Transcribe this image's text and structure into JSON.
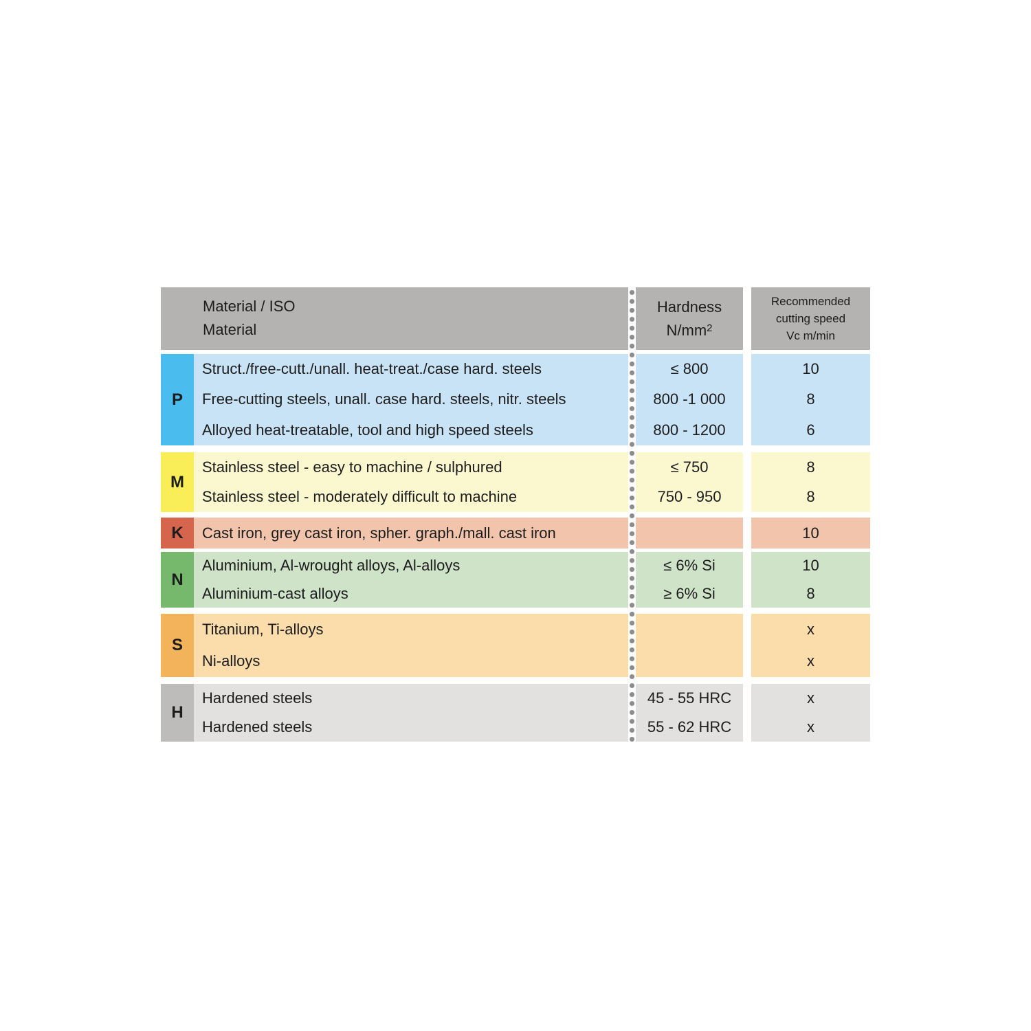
{
  "colors": {
    "background": "#ffffff",
    "header_bg": "#b5b3b1",
    "text": "#1c1c1c",
    "dot": "#8c8c8c"
  },
  "header": {
    "material": [
      "Material / ISO",
      "Material"
    ],
    "hardness_line1": "Hardness",
    "hardness_line2_base": "N/mm",
    "hardness_line2_sup": "2",
    "speed": [
      "Recommended",
      "cutting speed",
      "Vc m/min"
    ]
  },
  "groups": [
    {
      "code": "P",
      "label_color": "#4abced",
      "row_color": "#c9e3f6",
      "rows": [
        {
          "material": "Struct./free-cutt./unall. heat-treat./case hard. steels",
          "hardness": "≤ 800",
          "speed": "10"
        },
        {
          "material": "Free-cutting steels, unall. case hard. steels, nitr. steels",
          "hardness": "800 -1 000",
          "speed": "8"
        },
        {
          "material": "Alloyed heat-treatable, tool and high speed steels",
          "hardness": "800 - 1200",
          "speed": "6"
        }
      ]
    },
    {
      "code": "M",
      "label_color": "#f9ee58",
      "row_color": "#fbf8cf",
      "rows": [
        {
          "material": "Stainless steel - easy to machine / sulphured",
          "hardness": "≤ 750",
          "speed": "8"
        },
        {
          "material": "Stainless steel - moderately difficult to machine",
          "hardness": "750 - 950",
          "speed": "8"
        }
      ]
    },
    {
      "code": "K",
      "label_color": "#d5654d",
      "row_color": "#f2c4ab",
      "rows": [
        {
          "material": "Cast iron, grey cast iron, spher. graph./mall. cast iron",
          "hardness": "",
          "speed": "10"
        }
      ]
    },
    {
      "code": "N",
      "label_color": "#76b96d",
      "row_color": "#cfe3c9",
      "rows": [
        {
          "material": "Aluminium, Al-wrought alloys, Al-alloys",
          "hardness": "≤ 6% Si",
          "speed": "10"
        },
        {
          "material": "Aluminium-cast alloys",
          "hardness": "≥ 6% Si",
          "speed": "8"
        }
      ]
    },
    {
      "code": "S",
      "label_color": "#f2b35a",
      "row_color": "#fbdcab",
      "rows": [
        {
          "material": "Titanium, Ti-alloys",
          "hardness": "",
          "speed": "x"
        },
        {
          "material": "Ni-alloys",
          "hardness": "",
          "speed": "x"
        }
      ]
    },
    {
      "code": "H",
      "label_color": "#bdbcbb",
      "row_color": "#e2e1e0",
      "rows": [
        {
          "material": "Hardened steels",
          "hardness": "45 - 55 HRC",
          "speed": "x"
        },
        {
          "material": "Hardened steels",
          "hardness": "55 - 62 HRC",
          "speed": "x"
        }
      ]
    }
  ]
}
